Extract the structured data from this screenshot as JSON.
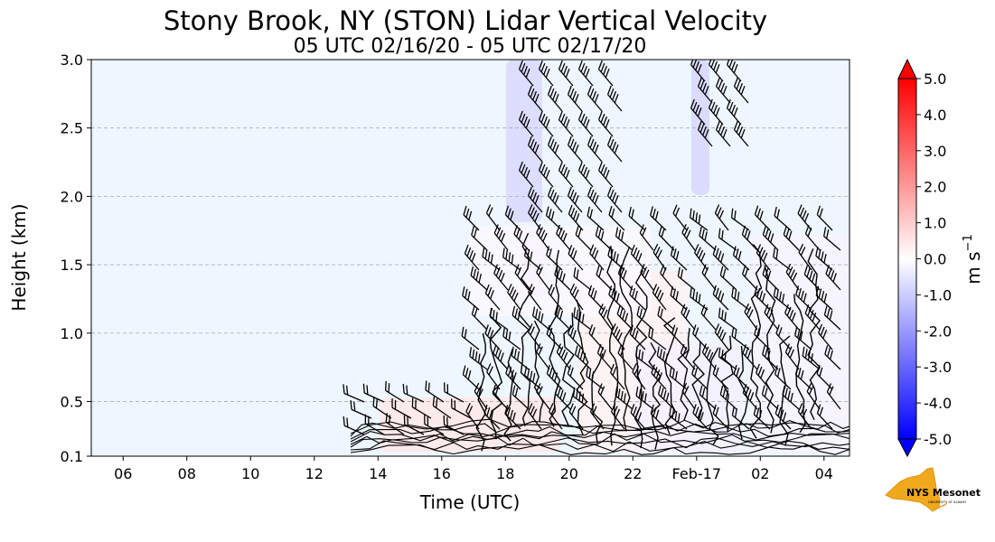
{
  "chart_data": {
    "type": "heatmap",
    "title": "Stony Brook, NY (STON) Lidar Vertical Velocity",
    "subtitle": "05 UTC 02/16/20 - 05 UTC 02/17/20",
    "xlabel": "Time (UTC)",
    "ylabel": "Height (km)",
    "x_tick_labels": [
      "06",
      "08",
      "10",
      "12",
      "14",
      "16",
      "18",
      "20",
      "22",
      "Feb-17",
      "02",
      "04"
    ],
    "x_tick_hours": [
      6,
      8,
      10,
      12,
      14,
      16,
      18,
      20,
      22,
      24,
      26,
      28
    ],
    "xlim_hours": [
      5,
      28.8
    ],
    "y_tick_labels": [
      "0.1",
      "0.5",
      "1.0",
      "1.5",
      "2.0",
      "2.5",
      "3.0"
    ],
    "y_ticks": [
      0.1,
      0.5,
      1.0,
      1.5,
      2.0,
      2.5,
      3.0
    ],
    "ylim": [
      0.1,
      3.0
    ],
    "grid": "horizontal dashed",
    "colorbar": {
      "label": "m s",
      "label_exponent": "−1",
      "tick_labels": [
        "5.0",
        "4.0",
        "3.0",
        "2.0",
        "1.0",
        "0.0",
        "-1.0",
        "-2.0",
        "-3.0",
        "-4.0",
        "-5.0"
      ],
      "range": [
        -5.0,
        5.0
      ],
      "colors": [
        "#0000ff",
        "#ffffff",
        "#ff0000"
      ]
    },
    "background_color": "#eef6ff",
    "data_onset_hour": 13.0
  },
  "logo": {
    "text": "NYS Mesonet",
    "small": "UNIVERSITY AT ALBANY"
  }
}
